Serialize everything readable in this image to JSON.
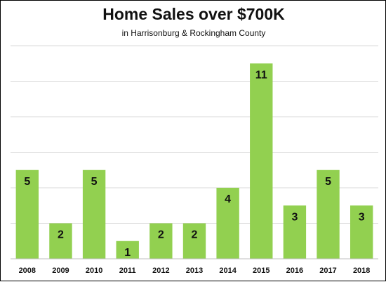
{
  "chart_data": {
    "type": "bar",
    "title": "Home Sales over $700K",
    "subtitle": "in Harrisonburg & Rockingham County",
    "xlabel": "",
    "ylabel": "",
    "categories": [
      "2008",
      "2009",
      "2010",
      "2011",
      "2012",
      "2013",
      "2014",
      "2015",
      "2016",
      "2017",
      "2018"
    ],
    "values": [
      5,
      2,
      5,
      1,
      2,
      2,
      4,
      11,
      3,
      5,
      3
    ],
    "ylim": [
      0,
      12
    ],
    "grid": true,
    "legend": "none",
    "data_labels": true,
    "bar_color": "#92D050",
    "grid_color": "#D9D9D9",
    "text_color": "#111111"
  }
}
